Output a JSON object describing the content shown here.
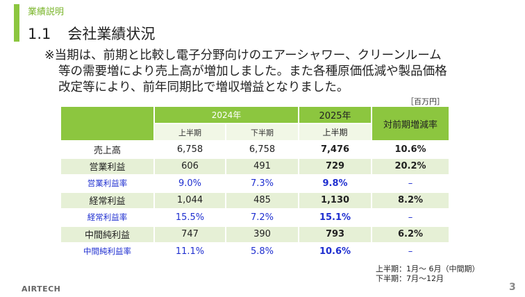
{
  "section_label": "業績説明",
  "heading": {
    "number": "1.1",
    "title": "会社業績状況"
  },
  "note_lines": [
    "※当期は、前期と比較し電子分野向けのエアーシャワー、クリーンルーム",
    "等の需要増により売上高が増加しました。また各種原価低減や製品価格",
    "改定等により、前年同期比で増収増益となりました。"
  ],
  "unit": "［百万円］",
  "table": {
    "year_2024": "2024年",
    "year_2025": "2025年",
    "change_header": "対前期増減率",
    "h1": "上半期",
    "h2": "下半期",
    "h3": "上半期",
    "rows": [
      {
        "label": "売上高",
        "a": "6,758",
        "b": "6,758",
        "c": "7,476",
        "d": "10.6%"
      },
      {
        "label": "営業利益",
        "a": "606",
        "b": "491",
        "c": "729",
        "d": "20.2%"
      },
      {
        "label": "営業利益率",
        "a": "9.0%",
        "b": "7.3%",
        "c": "9.8%",
        "d": "–"
      },
      {
        "label": "経常利益",
        "a": "1,044",
        "b": "485",
        "c": "1,130",
        "d": "8.2%"
      },
      {
        "label": "経常利益率",
        "a": "15.5%",
        "b": "7.2%",
        "c": "15.1%",
        "d": "–"
      },
      {
        "label": "中間純利益",
        "a": "747",
        "b": "390",
        "c": "793",
        "d": "6.2%"
      },
      {
        "label": "中間純利益率",
        "a": "11.1%",
        "b": "5.8%",
        "c": "10.6%",
        "d": "–"
      }
    ]
  },
  "period_notes": [
    "上半期：1月～ 6月（中間期）",
    "下半期：7月～12月"
  ],
  "logo_text": "AIRTECH",
  "page_number": "3",
  "colors": {
    "accent": "#8cc63f",
    "ratio_text": "#1f2fd0"
  }
}
